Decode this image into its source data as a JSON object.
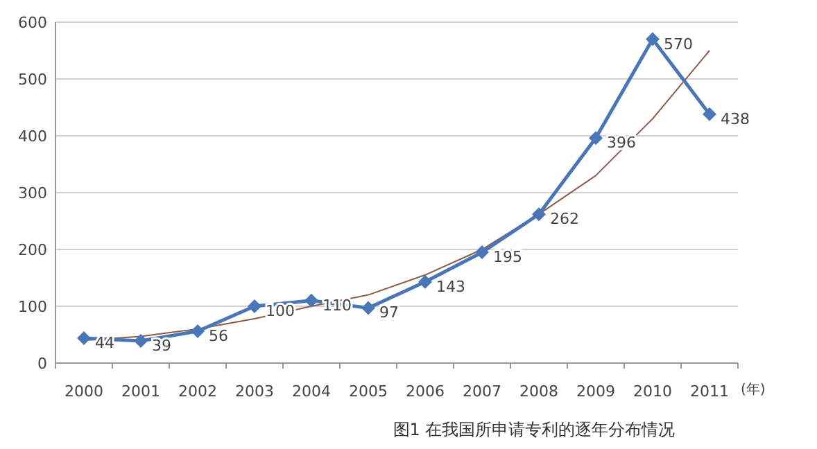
{
  "chart_data": {
    "type": "line",
    "categories": [
      "2000",
      "2001",
      "2002",
      "2003",
      "2004",
      "2005",
      "2006",
      "2007",
      "2008",
      "2009",
      "2010",
      "2011"
    ],
    "xlabel": "(年)",
    "ylim": [
      0,
      600
    ],
    "yticks": [
      0,
      100,
      200,
      300,
      400,
      500,
      600
    ],
    "grid": "y",
    "series": [
      {
        "color": "#4a76b8",
        "marker": "diamond",
        "values": [
          44,
          39,
          56,
          100,
          110,
          97,
          143,
          195,
          262,
          396,
          570,
          438
        ],
        "value_labels": [
          "44",
          "39",
          "56",
          "100",
          "110",
          "97",
          "143",
          "195",
          "262",
          "396",
          "570",
          "438"
        ]
      },
      {
        "color": "#8b5a4a",
        "marker": "none",
        "values": [
          40,
          47,
          60,
          78,
          100,
          120,
          155,
          200,
          262,
          330,
          430,
          550
        ]
      }
    ],
    "annotations": [
      "图1 在我国所申请专利的逐年分布情况"
    ]
  }
}
